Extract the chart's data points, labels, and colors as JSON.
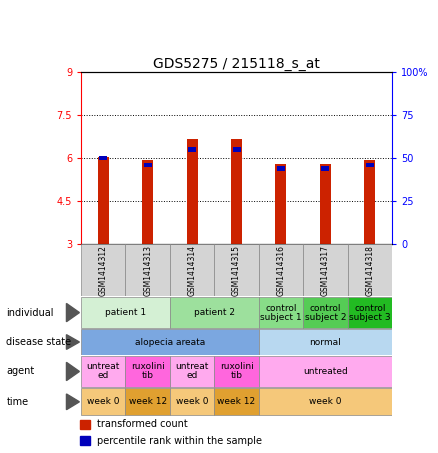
{
  "title": "GDS5275 / 215118_s_at",
  "samples": [
    "GSM1414312",
    "GSM1414313",
    "GSM1414314",
    "GSM1414315",
    "GSM1414316",
    "GSM1414317",
    "GSM1414318"
  ],
  "red_values": [
    6.05,
    5.95,
    6.65,
    6.65,
    5.8,
    5.8,
    5.95
  ],
  "blue_values": [
    50,
    46,
    55,
    55,
    44,
    44,
    46
  ],
  "y_min": 3.0,
  "y_max": 9.0,
  "y_ticks": [
    3,
    4.5,
    6,
    7.5,
    9
  ],
  "y_tick_labels": [
    "3",
    "4.5",
    "6",
    "7.5",
    "9"
  ],
  "y_right_ticks": [
    0,
    25,
    50,
    75,
    100
  ],
  "y_right_labels": [
    "0",
    "25",
    "50",
    "75",
    "100%"
  ],
  "dotted_lines": [
    4.5,
    6.0,
    7.5
  ],
  "bar_width": 0.25,
  "blue_bar_width": 0.18,
  "blue_bar_height": 0.15,
  "individual_groups": [
    {
      "label": "patient 1",
      "start": 0,
      "end": 2,
      "color": "#d4f0d4"
    },
    {
      "label": "patient 2",
      "start": 2,
      "end": 4,
      "color": "#9de09d"
    },
    {
      "label": "control\nsubject 1",
      "start": 4,
      "end": 5,
      "color": "#88dd88"
    },
    {
      "label": "control\nsubject 2",
      "start": 5,
      "end": 6,
      "color": "#55cc55"
    },
    {
      "label": "control\nsubject 3",
      "start": 6,
      "end": 7,
      "color": "#22bb22"
    }
  ],
  "disease_groups": [
    {
      "label": "alopecia areata",
      "start": 0,
      "end": 4,
      "color": "#7ba7e0"
    },
    {
      "label": "normal",
      "start": 4,
      "end": 7,
      "color": "#b8d8f0"
    }
  ],
  "agent_groups": [
    {
      "label": "untreat\ned",
      "start": 0,
      "end": 1,
      "color": "#ffaaee"
    },
    {
      "label": "ruxolini\ntib",
      "start": 1,
      "end": 2,
      "color": "#ff66dd"
    },
    {
      "label": "untreat\ned",
      "start": 2,
      "end": 3,
      "color": "#ffaaee"
    },
    {
      "label": "ruxolini\ntib",
      "start": 3,
      "end": 4,
      "color": "#ff66dd"
    },
    {
      "label": "untreated",
      "start": 4,
      "end": 7,
      "color": "#ffaaee"
    }
  ],
  "time_groups": [
    {
      "label": "week 0",
      "start": 0,
      "end": 1,
      "color": "#f5c87a"
    },
    {
      "label": "week 12",
      "start": 1,
      "end": 2,
      "color": "#e0a030"
    },
    {
      "label": "week 0",
      "start": 2,
      "end": 3,
      "color": "#f5c87a"
    },
    {
      "label": "week 12",
      "start": 3,
      "end": 4,
      "color": "#e0a030"
    },
    {
      "label": "week 0",
      "start": 4,
      "end": 7,
      "color": "#f5c87a"
    }
  ],
  "row_labels": [
    "individual",
    "disease state",
    "agent",
    "time"
  ],
  "legend": [
    {
      "color": "#cc2200",
      "label": "transformed count"
    },
    {
      "color": "#0000bb",
      "label": "percentile rank within the sample"
    }
  ],
  "title_fontsize": 10,
  "tick_fontsize": 7,
  "label_fontsize": 7,
  "table_fontsize": 6.5,
  "sample_fontsize": 5.5
}
